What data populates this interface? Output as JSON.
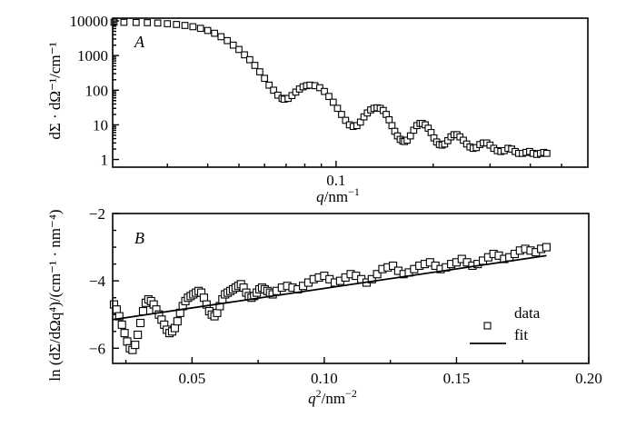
{
  "chart_data": [
    {
      "id": "A",
      "type": "scatter",
      "panel_label": "A",
      "xlabel_var": "q",
      "xlabel_unit": "/nm",
      "xlabel_exp": "−1",
      "ylabel": "dΣ · dΩ⁻¹/cm⁻¹",
      "xscale": "log",
      "yscale": "log",
      "xlim": [
        0.0203,
        0.603
      ],
      "ylim": [
        0.6,
        12000
      ],
      "xticks_major": [
        0.1
      ],
      "xtick_labels": [
        "0.1"
      ],
      "xticks_minor": [
        0.03,
        0.04,
        0.05,
        0.06,
        0.07,
        0.08,
        0.09,
        0.2,
        0.3,
        0.4,
        0.5
      ],
      "yticks": [
        1,
        10,
        100,
        1000,
        10000
      ],
      "ytick_labels": [
        "1",
        "10",
        "100",
        "1000",
        "10000"
      ],
      "series": [
        {
          "name": "data",
          "marker": "open-square",
          "x": [
            0.0205,
            0.022,
            0.024,
            0.026,
            0.028,
            0.03,
            0.032,
            0.034,
            0.036,
            0.038,
            0.04,
            0.042,
            0.044,
            0.046,
            0.048,
            0.05,
            0.052,
            0.054,
            0.056,
            0.058,
            0.06,
            0.062,
            0.064,
            0.066,
            0.068,
            0.069,
            0.071,
            0.073,
            0.075,
            0.077,
            0.079,
            0.081,
            0.083,
            0.086,
            0.089,
            0.092,
            0.095,
            0.098,
            0.101,
            0.104,
            0.107,
            0.11,
            0.113,
            0.116,
            0.119,
            0.122,
            0.125,
            0.128,
            0.131,
            0.134,
            0.137,
            0.14,
            0.143,
            0.146,
            0.149,
            0.152,
            0.155,
            0.158,
            0.161,
            0.163,
            0.166,
            0.17,
            0.174,
            0.178,
            0.182,
            0.185,
            0.189,
            0.193,
            0.197,
            0.201,
            0.205,
            0.209,
            0.213,
            0.217,
            0.222,
            0.227,
            0.232,
            0.237,
            0.242,
            0.248,
            0.254,
            0.26,
            0.266,
            0.272,
            0.279,
            0.286,
            0.293,
            0.3,
            0.308,
            0.316,
            0.324,
            0.332,
            0.341,
            0.35,
            0.359,
            0.368,
            0.378,
            0.388,
            0.398,
            0.408,
            0.419,
            0.43,
            0.44,
            0.45
          ],
          "y": [
            9200,
            9100,
            9000,
            8900,
            8700,
            8300,
            7900,
            7400,
            6800,
            6100,
            5300,
            4400,
            3500,
            2700,
            2000,
            1500,
            1050,
            760,
            520,
            340,
            220,
            140,
            100,
            72,
            58,
            55,
            58,
            70,
            88,
            108,
            125,
            135,
            140,
            135,
            118,
            92,
            66,
            45,
            30,
            20,
            13.5,
            10,
            9,
            9.5,
            12,
            17,
            22,
            27,
            30,
            31,
            30,
            26,
            20,
            14,
            9.5,
            6.5,
            4.8,
            3.8,
            3.4,
            3.3,
            3.6,
            4.8,
            7,
            9.5,
            11,
            11,
            10,
            8,
            6,
            4.2,
            3.2,
            2.7,
            2.6,
            2.8,
            3.5,
            4.5,
            5.2,
            5.2,
            4.5,
            3.6,
            2.8,
            2.3,
            2.1,
            2.2,
            2.7,
            3.0,
            3.0,
            2.6,
            2.1,
            1.8,
            1.7,
            1.8,
            2.1,
            2.0,
            1.7,
            1.5,
            1.5,
            1.6,
            1.7,
            1.5,
            1.4,
            1.5,
            1.6,
            1.5
          ]
        }
      ]
    },
    {
      "id": "B",
      "type": "scatter",
      "panel_label": "B",
      "xlabel_var": "q",
      "xlabel_sup": "2",
      "xlabel_unit": "/nm",
      "xlabel_exp": "−2",
      "ylabel": "ln (dΣ/dΩq⁴)/(cm⁻¹ · nm⁻⁴)",
      "xscale": "linear",
      "yscale": "linear",
      "xlim": [
        0.02,
        0.2
      ],
      "ylim": [
        -6.45,
        -2
      ],
      "xticks": [
        0.05,
        0.1,
        0.15,
        0.2
      ],
      "xtick_labels": [
        "0.05",
        "0.10",
        "0.15",
        "0.20"
      ],
      "xticks_minor": [
        0.025,
        0.075,
        0.125,
        0.175
      ],
      "yticks": [
        -2,
        -4,
        -6
      ],
      "ytick_labels": [
        "−2",
        "−4",
        "−6"
      ],
      "yticks_minor": [
        -2.5,
        -3,
        -3.5,
        -4.5,
        -5,
        -5.5
      ],
      "legend": {
        "position": "bottom-right",
        "entries": [
          {
            "label": "data",
            "marker": "open-square"
          },
          {
            "label": "fit",
            "marker": "line"
          }
        ]
      },
      "series": [
        {
          "name": "data",
          "marker": "open-square",
          "x": [
            0.0205,
            0.0215,
            0.0225,
            0.0235,
            0.0245,
            0.0255,
            0.0265,
            0.0275,
            0.0285,
            0.0295,
            0.0305,
            0.0315,
            0.0325,
            0.0335,
            0.0345,
            0.0355,
            0.0365,
            0.0375,
            0.0385,
            0.0395,
            0.0405,
            0.0415,
            0.0425,
            0.0435,
            0.0445,
            0.0455,
            0.0465,
            0.0475,
            0.0485,
            0.0495,
            0.0505,
            0.0515,
            0.0525,
            0.0535,
            0.0545,
            0.0555,
            0.0565,
            0.0575,
            0.0585,
            0.0595,
            0.0605,
            0.0615,
            0.0625,
            0.0635,
            0.0645,
            0.0655,
            0.0665,
            0.0675,
            0.0685,
            0.0695,
            0.0705,
            0.0715,
            0.0725,
            0.0735,
            0.0745,
            0.0755,
            0.0765,
            0.0775,
            0.0785,
            0.0795,
            0.0805,
            0.082,
            0.084,
            0.086,
            0.088,
            0.09,
            0.092,
            0.094,
            0.096,
            0.098,
            0.1,
            0.102,
            0.104,
            0.106,
            0.108,
            0.11,
            0.112,
            0.114,
            0.116,
            0.118,
            0.12,
            0.122,
            0.124,
            0.126,
            0.128,
            0.13,
            0.132,
            0.134,
            0.136,
            0.138,
            0.14,
            0.142,
            0.144,
            0.146,
            0.148,
            0.15,
            0.152,
            0.154,
            0.156,
            0.158,
            0.16,
            0.162,
            0.164,
            0.166,
            0.168,
            0.17,
            0.172,
            0.174,
            0.176,
            0.178,
            0.18,
            0.182,
            0.184
          ],
          "y": [
            -4.7,
            -4.85,
            -5.05,
            -5.3,
            -5.55,
            -5.8,
            -6.0,
            -6.05,
            -5.9,
            -5.6,
            -5.25,
            -4.9,
            -4.65,
            -4.55,
            -4.6,
            -4.7,
            -4.85,
            -5.0,
            -5.15,
            -5.3,
            -5.45,
            -5.55,
            -5.5,
            -5.4,
            -5.2,
            -4.95,
            -4.75,
            -4.6,
            -4.5,
            -4.45,
            -4.4,
            -4.35,
            -4.3,
            -4.35,
            -4.5,
            -4.7,
            -4.9,
            -5.0,
            -5.05,
            -4.95,
            -4.75,
            -4.55,
            -4.4,
            -4.35,
            -4.3,
            -4.25,
            -4.2,
            -4.15,
            -4.1,
            -4.2,
            -4.35,
            -4.45,
            -4.5,
            -4.45,
            -4.35,
            -4.25,
            -4.2,
            -4.25,
            -4.3,
            -4.35,
            -4.4,
            -4.3,
            -4.2,
            -4.15,
            -4.2,
            -4.25,
            -4.15,
            -4.05,
            -3.95,
            -3.9,
            -3.85,
            -3.95,
            -4.05,
            -4.0,
            -3.9,
            -3.8,
            -3.85,
            -3.95,
            -4.05,
            -3.95,
            -3.8,
            -3.65,
            -3.6,
            -3.55,
            -3.7,
            -3.8,
            -3.75,
            -3.65,
            -3.55,
            -3.5,
            -3.45,
            -3.55,
            -3.65,
            -3.6,
            -3.5,
            -3.45,
            -3.35,
            -3.45,
            -3.55,
            -3.5,
            -3.4,
            -3.3,
            -3.2,
            -3.25,
            -3.35,
            -3.3,
            -3.2,
            -3.1,
            -3.05,
            -3.1,
            -3.15,
            -3.05,
            -3.0
          ]
        },
        {
          "name": "fit",
          "marker": "line",
          "x": [
            0.02,
            0.184
          ],
          "y": [
            -5.15,
            -3.25
          ]
        }
      ]
    }
  ]
}
